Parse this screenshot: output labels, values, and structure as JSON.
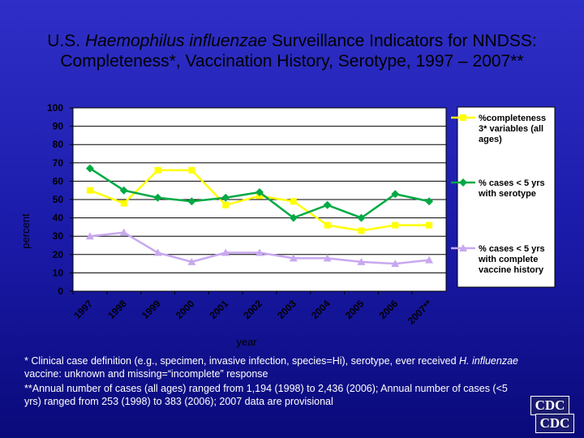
{
  "title": {
    "prefix": "U.S. ",
    "italic": "Haemophilus influenzae",
    "suffix": " Surveillance Indicators for NNDSS: Completeness*, Vaccination History, Serotype, 1997 – 2007**"
  },
  "chart_data": {
    "type": "line",
    "categories": [
      "1997",
      "1998",
      "1999",
      "2000",
      "2001",
      "2002",
      "2003",
      "2004",
      "2005",
      "2006",
      "2007**"
    ],
    "series": [
      {
        "name": "%completeness 3* variables (all ages)",
        "color": "#ffff00",
        "marker": "square",
        "values": [
          55,
          48,
          66,
          66,
          47,
          52,
          49,
          36,
          33,
          36,
          36
        ]
      },
      {
        "name": "% cases < 5 yrs with serotype",
        "color": "#00aa44",
        "marker": "diamond",
        "values": [
          67,
          55,
          51,
          49,
          51,
          54,
          40,
          47,
          40,
          53,
          49
        ]
      },
      {
        "name": "% cases < 5 yrs with complete vaccine history",
        "color": "#c8a8f0",
        "marker": "triangle",
        "values": [
          30,
          32,
          21,
          16,
          21,
          21,
          18,
          18,
          16,
          15,
          17
        ]
      }
    ],
    "yticks": [
      "0",
      "10",
      "20",
      "30",
      "40",
      "50",
      "60",
      "70",
      "80",
      "90",
      "100"
    ],
    "ylim": [
      0,
      100
    ],
    "xlabel": "year",
    "ylabel": "percent",
    "grid": true,
    "legend": "right"
  },
  "footnote": {
    "line1_a": "* Clinical case definition (e.g., specimen, invasive infection, species=Hi), serotype, ever received ",
    "line1_i": "H. influenzae",
    "line1_b": " vaccine: unknown and missing=“incomplete” response",
    "line2": "**Annual number of cases (all ages) ranged from 1,194 (1998) to 2,436 (2006); Annual number of cases (<5 yrs) ranged from 253 (1998) to 383 (2006); 2007 data are provisional"
  },
  "logo": {
    "top": "CDC",
    "bottom": "CDC"
  }
}
